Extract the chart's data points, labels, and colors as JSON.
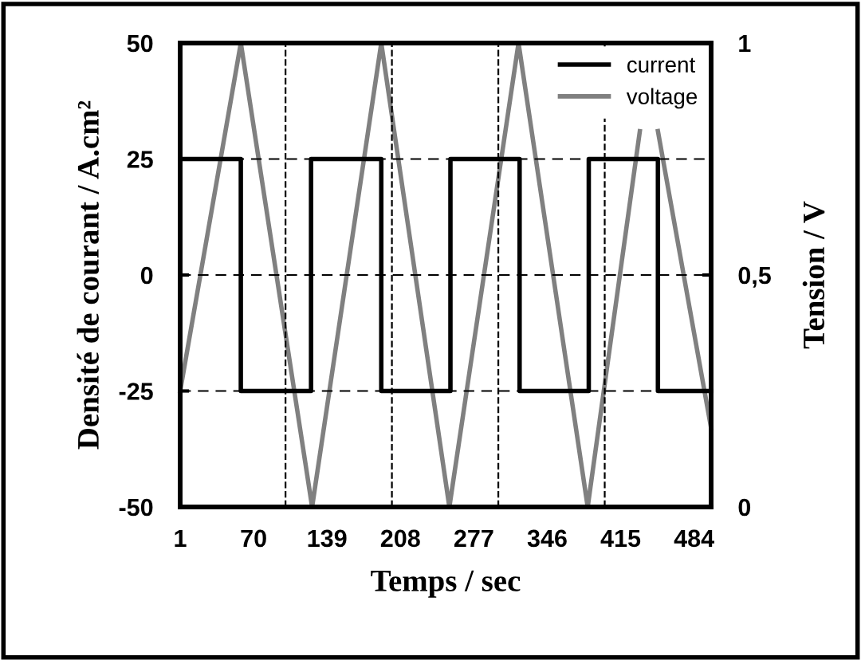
{
  "chart_data": {
    "type": "line",
    "xlabel": "Temps / sec",
    "ylabel": "Densité de courant / A.cm²",
    "y2label": "Tension / V",
    "xlim": [
      1,
      500
    ],
    "xticks": [
      1,
      70,
      139,
      208,
      277,
      346,
      415,
      484
    ],
    "ylim": [
      -50,
      50
    ],
    "yticks": [
      -50,
      -25,
      0,
      25,
      50
    ],
    "y2lim": [
      0,
      1
    ],
    "y2ticks": [
      0,
      {
        "value": 0.5,
        "label": "0,5"
      },
      1
    ],
    "grid": "y",
    "legend": "top right",
    "line_style": "solid",
    "marker": "none",
    "ref_lines": [
      {
        "axis": "x",
        "value": 100,
        "line_style": "dashed",
        "color": "#000000"
      },
      {
        "axis": "x",
        "value": 200,
        "line_style": "dashed",
        "color": "#000000"
      },
      {
        "axis": "x",
        "value": 300,
        "line_style": "dashed",
        "color": "#000000"
      },
      {
        "axis": "x",
        "value": 400,
        "line_style": "dashed",
        "color": "#000000"
      }
    ],
    "series": [
      {
        "name": "current",
        "color": "#000000",
        "x": [
          1,
          58,
          58,
          124,
          124,
          190,
          190,
          255,
          255,
          320,
          320,
          385,
          385,
          450,
          450,
          500
        ],
        "values": [
          25,
          25,
          -25,
          -25,
          25,
          25,
          -25,
          -25,
          25,
          25,
          -25,
          -25,
          25,
          25,
          -25,
          -25
        ]
      },
      {
        "name": "voltage",
        "color": "#808080",
        "axis": "y2",
        "x": [
          1,
          58,
          125,
          190,
          254,
          319,
          384,
          433,
          441,
          450,
          500
        ],
        "values": [
          0.25,
          1,
          0,
          1,
          0,
          1,
          0,
          0.81,
          null,
          0.81,
          0.17
        ]
      }
    ]
  }
}
